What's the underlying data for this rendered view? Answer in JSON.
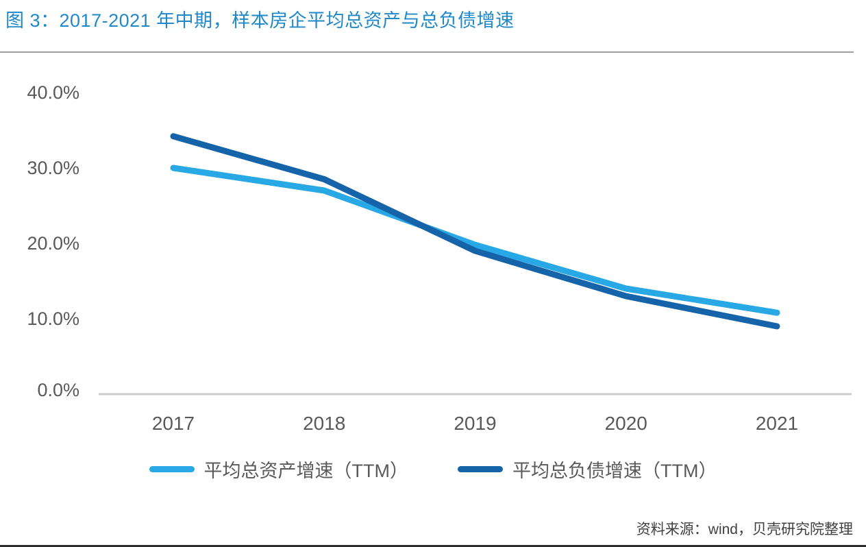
{
  "header": {
    "title": "图 3：2017-2021 年中期，样本房企平均总资产与总负债增速"
  },
  "colors": {
    "title_text": "#1f88c9",
    "axis_text": "#595959",
    "axis_line": "#cccccc",
    "source_text": "#3f3f3f",
    "series_assets": "#29a8e6",
    "series_liabilities": "#1563a8"
  },
  "chart_data": {
    "type": "line",
    "categories": [
      "2017",
      "2018",
      "2019",
      "2020",
      "2021"
    ],
    "series": [
      {
        "name": "平均总资产增速（TTM）",
        "color": "#29a8e6",
        "values": [
          30.0,
          27.0,
          19.8,
          14.0,
          10.8
        ]
      },
      {
        "name": "平均总负债增速（TTM）",
        "color": "#1563a8",
        "values": [
          34.2,
          28.5,
          19.0,
          13.0,
          9.0
        ]
      }
    ],
    "title": "图 3：2017-2021 年中期，样本房企平均总资产与总负债增速",
    "xlabel": "",
    "ylabel": "",
    "ylim": [
      0,
      40
    ],
    "yticks": [
      {
        "value": 40,
        "label": "40.0%"
      },
      {
        "value": 30,
        "label": "30.0%"
      },
      {
        "value": 20,
        "label": "20.0%"
      },
      {
        "value": 10,
        "label": "10.0%"
      },
      {
        "value": 0,
        "label": "0.0%"
      }
    ],
    "grid": false,
    "legend_position": "bottom"
  },
  "footer": {
    "source": "资料来源：wind，贝壳研究院整理"
  }
}
